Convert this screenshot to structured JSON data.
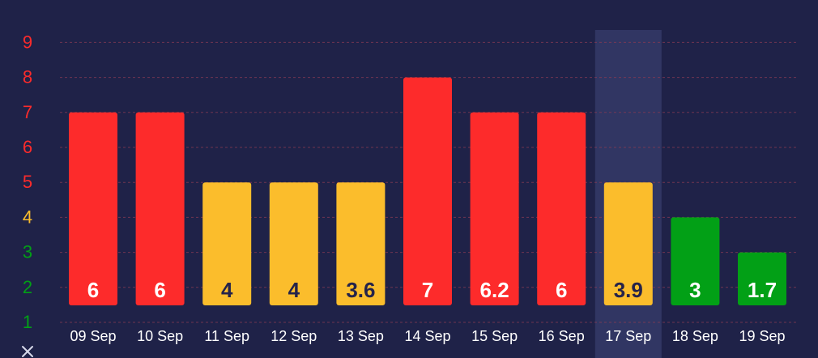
{
  "chart_data": {
    "type": "bar",
    "title": "",
    "xlabel": "",
    "ylabel": "",
    "ylim": [
      1,
      9
    ],
    "yticks": [
      1,
      2,
      3,
      4,
      5,
      6,
      7,
      8,
      9
    ],
    "yaxis_symbol": "✕",
    "highlight_category": "17 Sep",
    "categories": [
      "09 Sep",
      "10 Sep",
      "11 Sep",
      "12 Sep",
      "13 Sep",
      "14 Sep",
      "15 Sep",
      "16 Sep",
      "17 Sep",
      "18 Sep",
      "19 Sep"
    ],
    "values": [
      6,
      6,
      4,
      4,
      3.6,
      7,
      6.2,
      6,
      3.9,
      3,
      1.7
    ],
    "bar_heights": [
      6,
      6,
      4,
      4,
      4,
      7,
      6,
      6,
      4,
      3,
      2
    ],
    "labels": [
      "6",
      "6",
      "4",
      "4",
      "3.6",
      "7",
      "6.2",
      "6",
      "3.9",
      "3",
      "1.7"
    ],
    "colors": {
      "background": "#1f2248",
      "high": "#fd2b2b",
      "medium": "#fbbd2c",
      "low": "#02a016",
      "highlight": "#353a68",
      "grid": "#8a3b54",
      "text": "#ffffff",
      "dark_text": "#25234a"
    }
  }
}
